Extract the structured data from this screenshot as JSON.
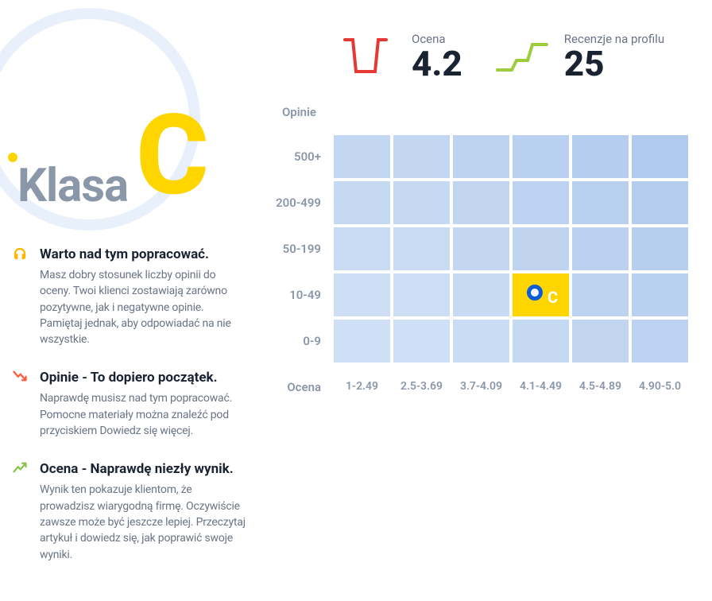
{
  "grade": {
    "label": "Klasa",
    "letter": "C",
    "letter_color": "#ffd500",
    "label_color": "#8a97a8",
    "circle_color": "#e8f0fb"
  },
  "tips": [
    {
      "icon_name": "headphones-icon",
      "icon_color": "#ffb400",
      "title": "Warto nad tym popracować.",
      "text": "Masz dobry stosunek liczby opinii do oceny. Twoi klienci zostawiają zarówno pozytywne, jak i negatywne opinie. Pamiętaj jednak, aby odpowiadać na nie wszystkie."
    },
    {
      "icon_name": "trend-down-icon",
      "icon_color": "#ff5a36",
      "title": "Opinie - To dopiero początek.",
      "text": "Naprawdę musisz nad tym popracować. Pomocne materiały można znaleźć pod przyciskiem Dowiedz się więcej."
    },
    {
      "icon_name": "trend-up-icon",
      "icon_color": "#8bc34a",
      "title": "Ocena - Naprawdę niezły wynik.",
      "text": "Wynik ten pokazuje klientom, że prowadzisz wiarygodną firmę. Oczywiście zawsze może być jeszcze lepiej. Przeczytaj artykuł i dowiedz się, jak poprawić swoje wyniki."
    }
  ],
  "stats": {
    "rating": {
      "label": "Ocena",
      "value": "4.2",
      "icon_color": "#e53935"
    },
    "reviews": {
      "label": "Recenzje na profilu",
      "value": "25",
      "icon_color": "#9ccc3c"
    }
  },
  "heatmap": {
    "y_label": "Opinie",
    "x_label": "Ocena",
    "y_ticks": [
      "500+",
      "200-499",
      "50-199",
      "10-49",
      "0-9"
    ],
    "x_ticks": [
      "1-2.49",
      "2.5-3.69",
      "3.7-4.09",
      "4.1-4.49",
      "4.5-4.89",
      "4.90-5.0"
    ],
    "cell_colors": [
      [
        "#c3d7f2",
        "#c3d7f2",
        "#bed3f0",
        "#bad0ef",
        "#b5cdee",
        "#b0caed"
      ],
      [
        "#c6d9f3",
        "#c6d9f3",
        "#c1d5f1",
        "#bdd2f0",
        "#b8cfee",
        "#b4cced"
      ],
      [
        "#c9dbf3",
        "#c9dbf3",
        "#c4d7f2",
        "#c0d4f0",
        "#bbd1ef",
        "#b7ceee"
      ],
      [
        "#ccddf4",
        "#ccddf4",
        "#c7daf2",
        "#c3d7f1",
        "#bed3f0",
        "#bad0ef"
      ],
      [
        "#cfdff5",
        "#cfdff5",
        "#cadcf3",
        "#c6d9f2",
        "#c1d5f1",
        "#bdd2f0"
      ]
    ],
    "highlight": {
      "row": 3,
      "col": 3,
      "letter": "C",
      "bg": "#ffd500",
      "marker_border": "#0b5ed7"
    }
  }
}
